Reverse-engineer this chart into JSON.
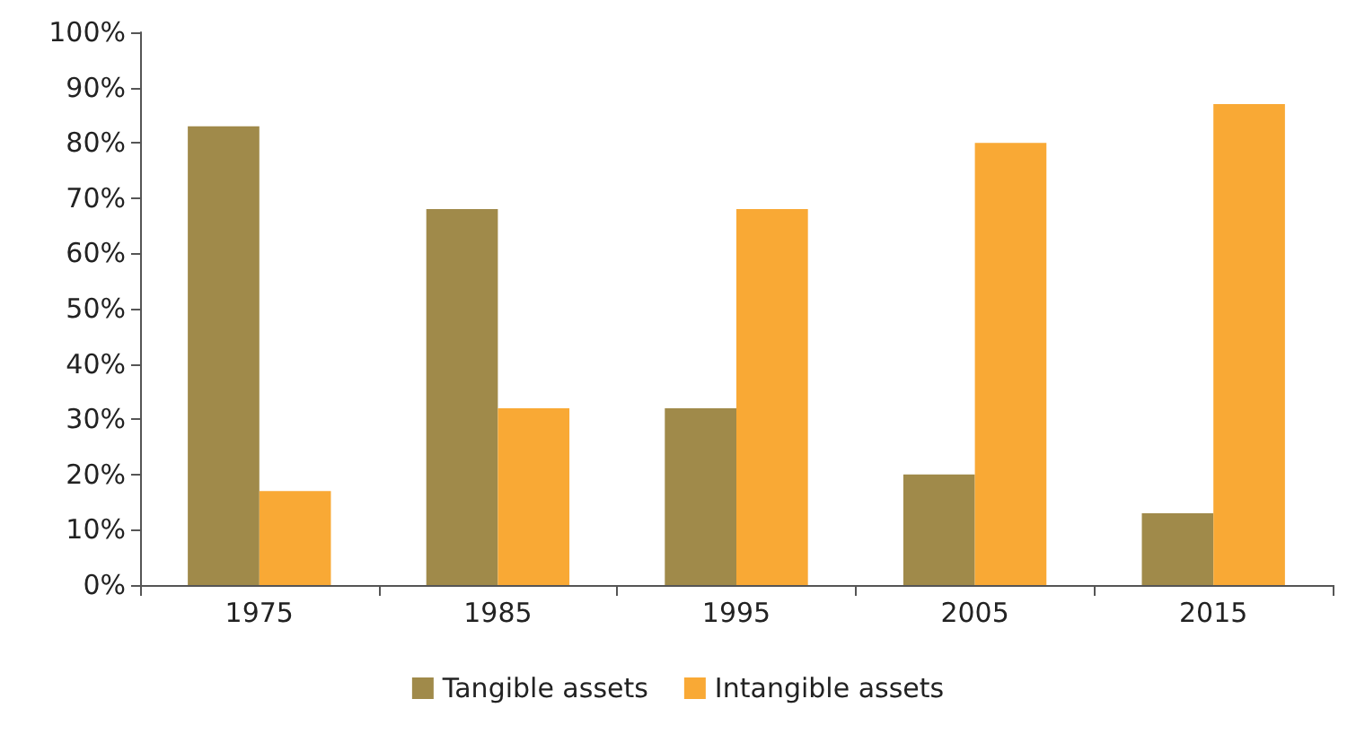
{
  "chart_data": {
    "type": "bar",
    "categories": [
      "1975",
      "1985",
      "1995",
      "2005",
      "2015"
    ],
    "series": [
      {
        "name": "Tangible assets",
        "color": "#a08a4a",
        "values": [
          83,
          68,
          32,
          20,
          13
        ]
      },
      {
        "name": "Intangible assets",
        "color": "#f9a935",
        "values": [
          17,
          32,
          68,
          80,
          87
        ]
      }
    ],
    "ylim": [
      0,
      100
    ],
    "yticks": [
      {
        "value": 0,
        "label": "0%"
      },
      {
        "value": 10,
        "label": "10%"
      },
      {
        "value": 20,
        "label": "20%"
      },
      {
        "value": 30,
        "label": "30%"
      },
      {
        "value": 40,
        "label": "40%"
      },
      {
        "value": 50,
        "label": "50%"
      },
      {
        "value": 60,
        "label": "60%"
      },
      {
        "value": 70,
        "label": "70%"
      },
      {
        "value": 80,
        "label": "80%"
      },
      {
        "value": 90,
        "label": "90%"
      },
      {
        "value": 100,
        "label": "100%"
      }
    ],
    "grid": false,
    "legend": "bottom"
  }
}
